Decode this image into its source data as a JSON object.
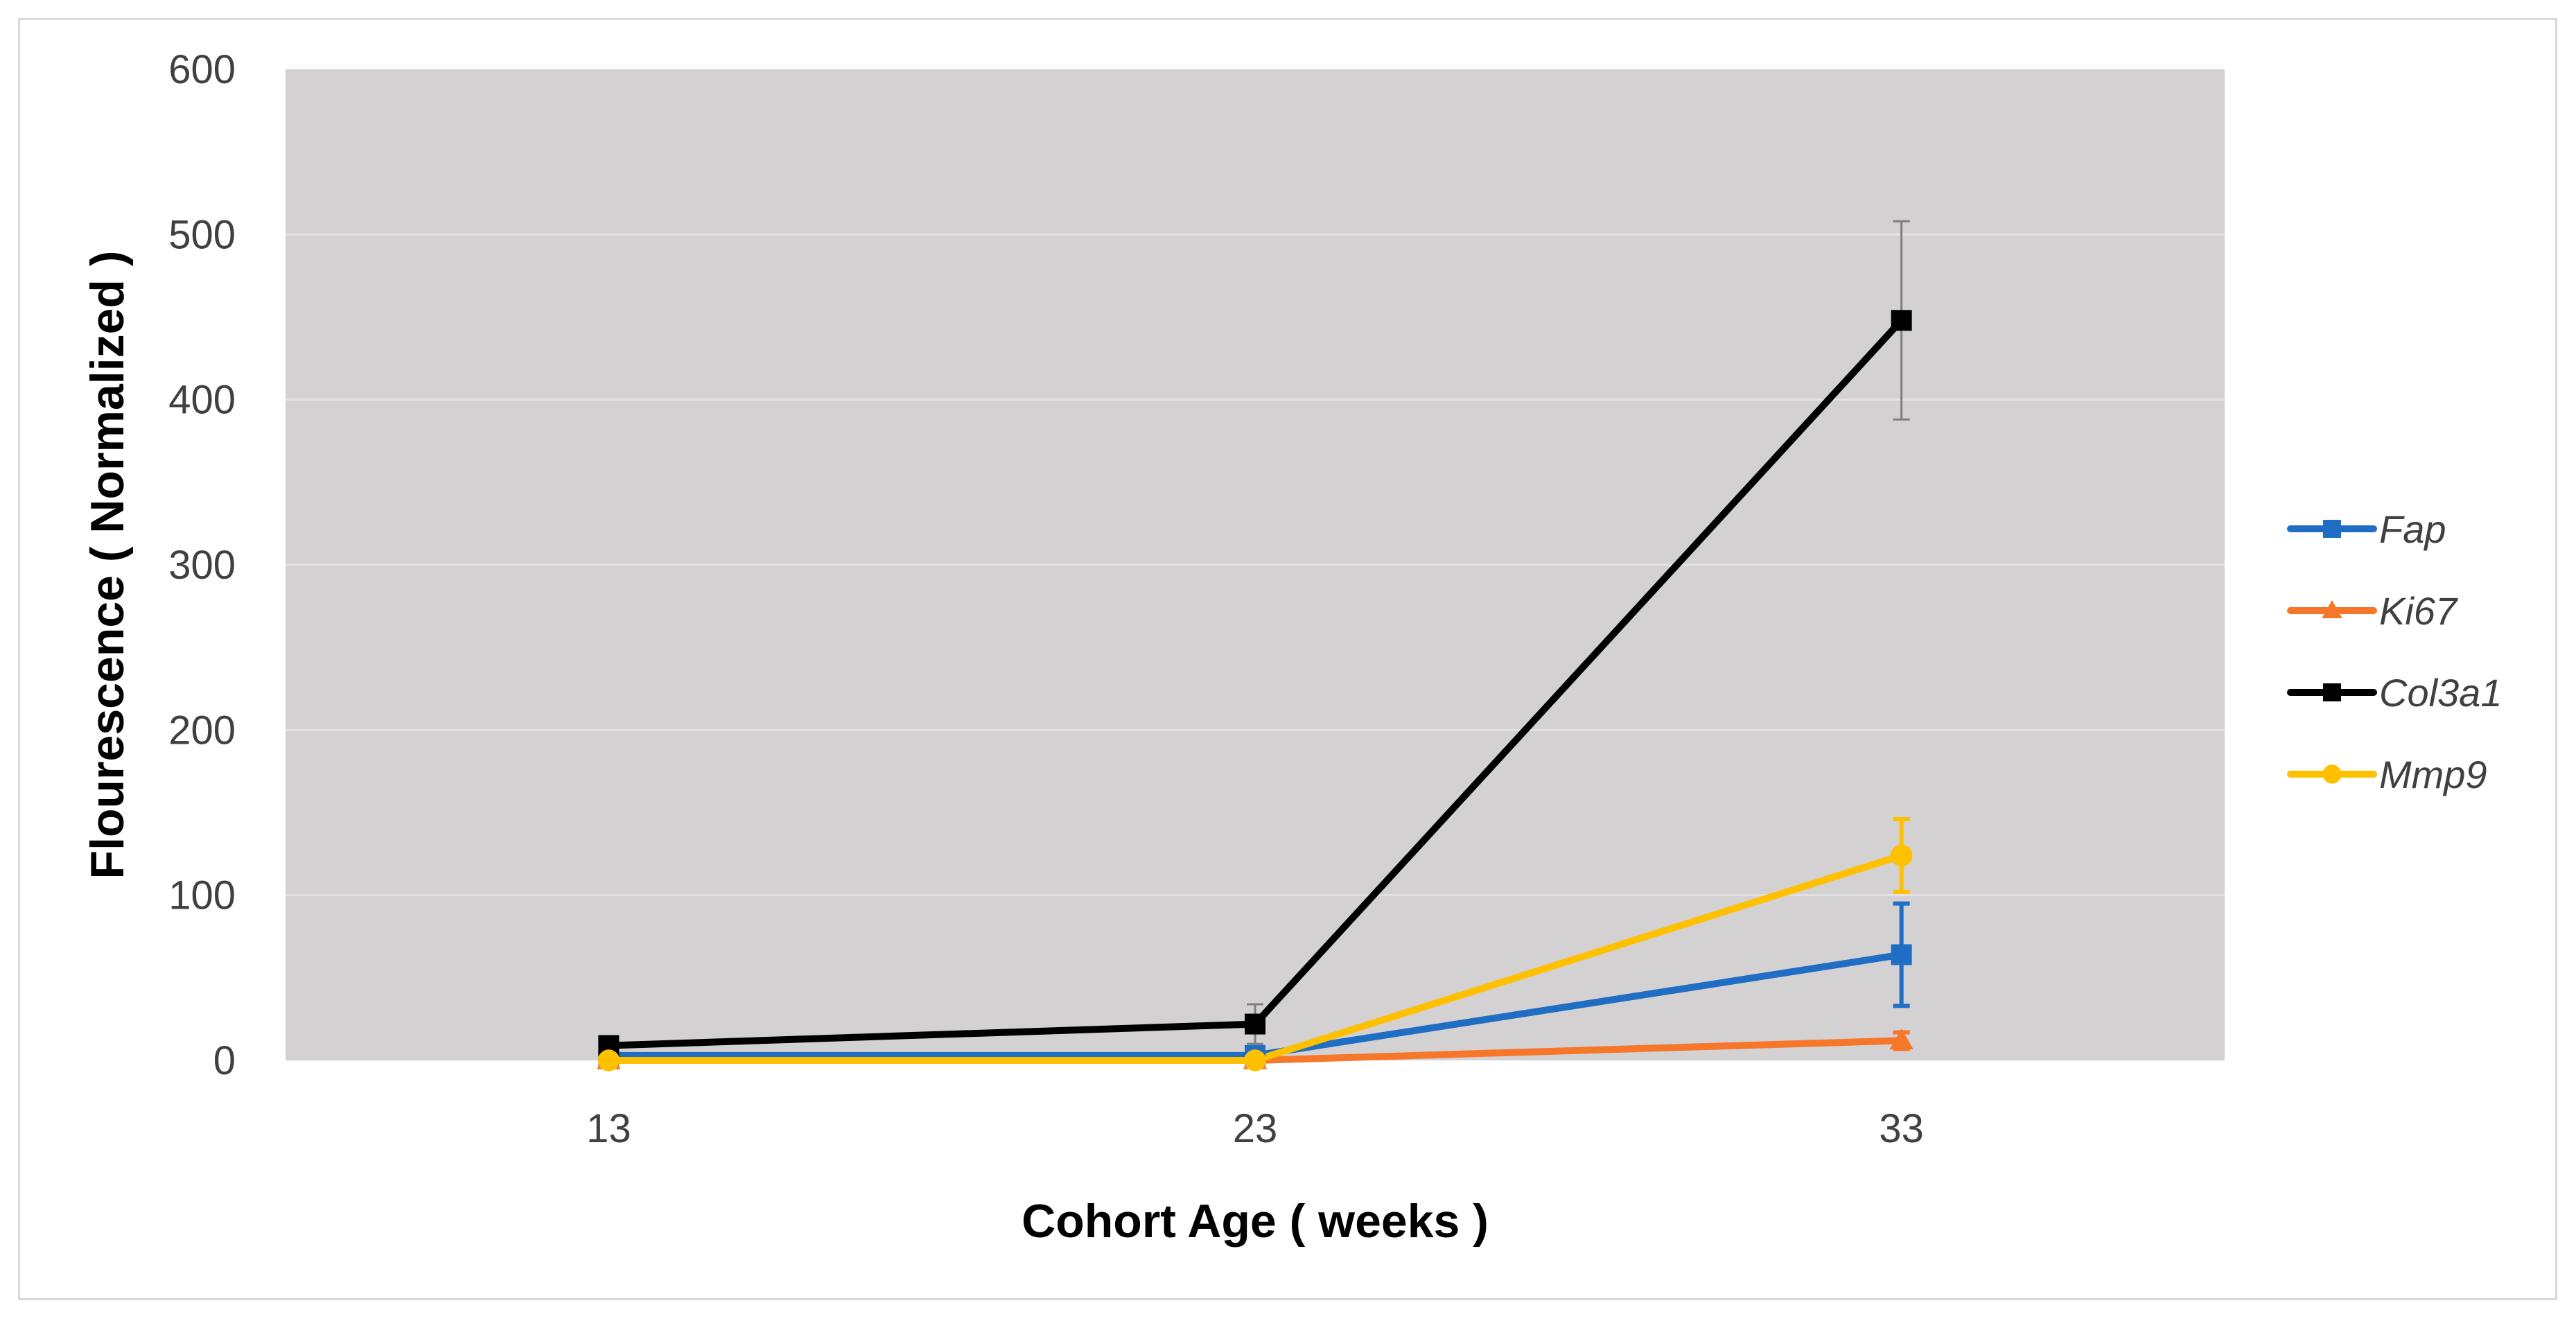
{
  "chart_data": {
    "type": "line",
    "title": "",
    "xlabel": "Cohort Age ( weeks )",
    "ylabel": "Flourescence ( Normalized )",
    "x": [
      13,
      23,
      33
    ],
    "x_tick_labels": [
      "13",
      "23",
      "33"
    ],
    "xlim": [
      8,
      38
    ],
    "ylim": [
      0,
      600
    ],
    "y_ticks": [
      0,
      100,
      200,
      300,
      400,
      500,
      600
    ],
    "grid": true,
    "plot_background": "#d4d1d2",
    "gridline_color": "#e3e1e2",
    "legend_position": "right",
    "series": [
      {
        "name": "Fap",
        "color": "#1f6ec4",
        "marker": "square",
        "values": [
          3,
          3,
          64
        ],
        "error": [
          0,
          2,
          31
        ]
      },
      {
        "name": "Ki67",
        "color": "#f6762a",
        "marker": "triangle",
        "values": [
          0,
          0,
          12
        ],
        "error": [
          0,
          0,
          5
        ]
      },
      {
        "name": "Col3a1",
        "color": "#000000",
        "marker": "square",
        "values": [
          9,
          22,
          448
        ],
        "error": [
          0,
          12,
          60
        ]
      },
      {
        "name": "Mmp9",
        "color": "#ffc000",
        "marker": "circle",
        "values": [
          0,
          0,
          124
        ],
        "error": [
          0,
          0,
          22
        ]
      }
    ]
  }
}
